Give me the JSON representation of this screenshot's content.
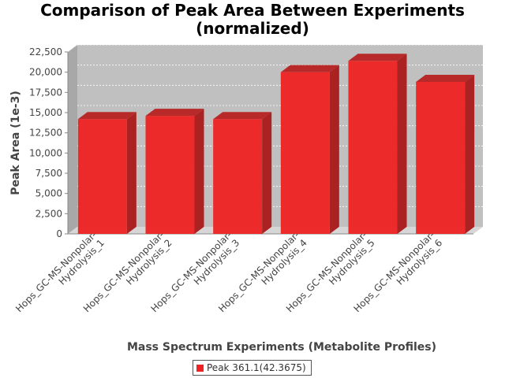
{
  "chart_data": {
    "type": "bar",
    "title_line1": "Comparison of Peak Area Between Experiments",
    "title_line2": "(normalized)",
    "xlabel": "Mass Spectrum Experiments (Metabolite Profiles)",
    "ylabel": "Peak Area (1e-3)",
    "ylim": [
      0,
      22500
    ],
    "yticks": [
      0,
      2500,
      5000,
      7500,
      10000,
      12500,
      15000,
      17500,
      20000,
      22500
    ],
    "ytick_labels": [
      "0",
      "2,500",
      "5,000",
      "7,500",
      "10,000",
      "12,500",
      "15,000",
      "17,500",
      "20,000",
      "22,500"
    ],
    "categories": [
      [
        "Hops_GC-MS-Nonpolar-",
        "Hydrolysis_1"
      ],
      [
        "Hops_GC-MS-Nonpolar-",
        "Hydrolysis_2"
      ],
      [
        "Hops_GC-MS-Nonpolar-",
        "Hydrolysis_3"
      ],
      [
        "Hops_GC-MS-Nonpolar-",
        "Hydrolysis_4"
      ],
      [
        "Hops_GC-MS-Nonpolar-",
        "Hydrolysis_5"
      ],
      [
        "Hops_GC-MS-Nonpolar-",
        "Hydrolysis_6"
      ]
    ],
    "series": [
      {
        "name": "Peak 361.1(42.3675)",
        "color": "#ee2222",
        "values": [
          14200,
          14600,
          14200,
          20000,
          21400,
          18800
        ]
      }
    ],
    "grid": true,
    "legend_position": "bottom-center",
    "background_color": "#c0c0c0"
  }
}
